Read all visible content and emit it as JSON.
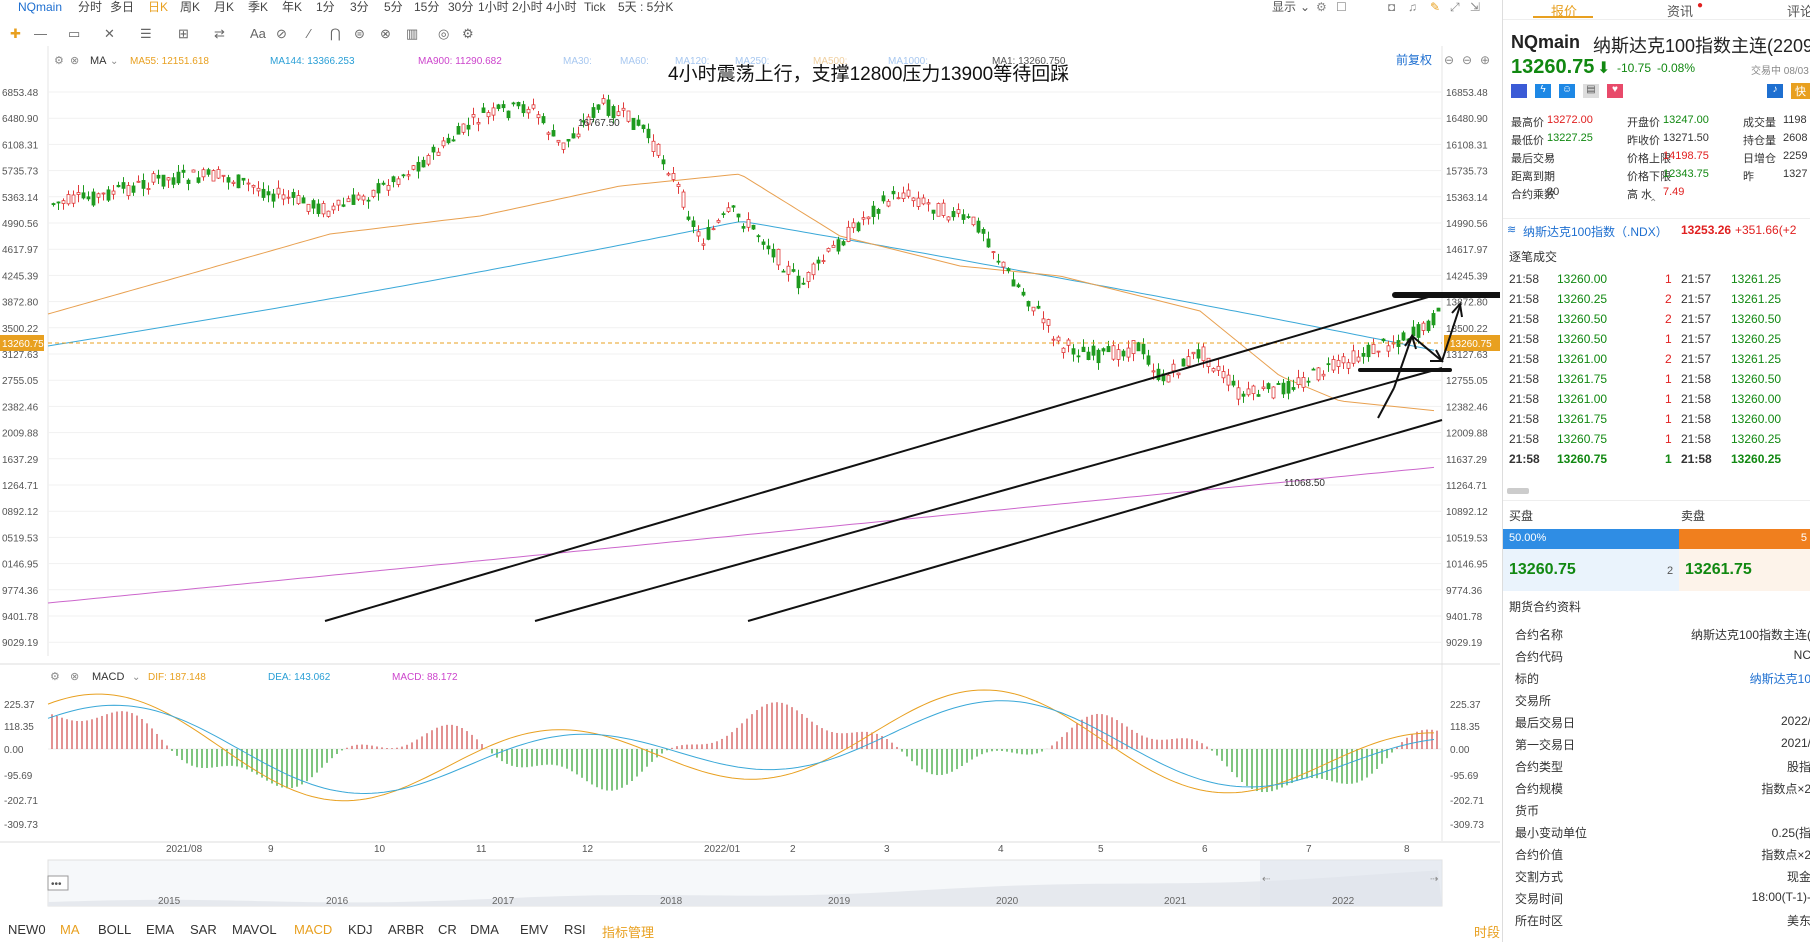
{
  "topbar": {
    "symbol": "NQmain",
    "periods": [
      "分时",
      "多日",
      "日K",
      "周K",
      "月K",
      "季K",
      "年K",
      "1分",
      "3分",
      "5分",
      "15分",
      "30分",
      "1小时",
      "2小时",
      "4小时",
      "Tick",
      "5天 : 5分K"
    ],
    "active_period": "日K",
    "display": "显示"
  },
  "toolbar": {
    "aa": "Aa"
  },
  "indicator_bar": {
    "name": "MA",
    "items": [
      {
        "label": "MA55: 12151.618",
        "color": "#e8a020"
      },
      {
        "label": "MA144: 13366.253",
        "color": "#2a9fd6"
      },
      {
        "label": "MA900: 11290.682",
        "color": "#cc44cc"
      },
      {
        "label": "MA30:",
        "color": "#a8c8f0"
      },
      {
        "label": "MA60:",
        "color": "#a8c8f0"
      },
      {
        "label": "MA120:",
        "color": "#a8c8f0"
      },
      {
        "label": "MA250:",
        "color": "#a8c8f0"
      },
      {
        "label": "MA500:",
        "color": "#f0d0a0"
      },
      {
        "label": "MA1000:",
        "color": "#a8c8f0"
      },
      {
        "label": "MA1: 13260.750",
        "color": "#555555"
      }
    ],
    "restore": "前复权"
  },
  "annotation": "4小时震荡上行，支撑12800压力13900等待回踩",
  "price_axis": [
    "16853.48",
    "16480.90",
    "16108.31",
    "15735.73",
    "15363.14",
    "14990.56",
    "14617.97",
    "14245.39",
    "13872.80",
    "13500.22",
    "13127.63",
    "12755.05",
    "12382.46",
    "12009.88",
    "11637.29",
    "11264.71",
    "10892.12",
    "10519.53",
    "10146.95",
    "9774.36",
    "9401.78",
    "9029.19"
  ],
  "price_axis_left": [
    "6853.48",
    "6480.90",
    "6108.31",
    "5735.73",
    "5363.14",
    "4990.56",
    "4617.97",
    "4245.39",
    "3872.80",
    "3500.22",
    "3127.63",
    "2755.05",
    "2382.46",
    "2009.88",
    "1637.29",
    "1264.71",
    "0892.12",
    "0519.53",
    "0146.95",
    "9774.36",
    "9401.78",
    "9029.19"
  ],
  "current_price_tag": "13260.75",
  "high_label": "16767.50",
  "low_label": "11068.50",
  "macd_bar": {
    "name": "MACD",
    "items": [
      {
        "label": "DIF: 187.148",
        "color": "#e8a020"
      },
      {
        "label": "DEA: 143.062",
        "color": "#2a9fd6"
      },
      {
        "label": "MACD: 88.172",
        "color": "#cc44cc"
      }
    ]
  },
  "macd_axis": [
    "225.37",
    "118.35",
    "0.00",
    "-95.69",
    "-202.71",
    "-309.73"
  ],
  "time_axis": [
    "2021/08",
    "9",
    "10",
    "11",
    "12",
    "2022/01",
    "2",
    "3",
    "4",
    "5",
    "6",
    "7",
    "8"
  ],
  "overview_years": [
    "2015",
    "2016",
    "2017",
    "2018",
    "2019",
    "2020",
    "2021",
    "2022"
  ],
  "bottom_tabs": [
    "NEW0",
    "MA",
    "BOLL",
    "EMA",
    "SAR",
    "MAVOL",
    "MACD",
    "KDJ",
    "ARBR",
    "CR",
    "DMA",
    "EMV",
    "RSI",
    "指标管理"
  ],
  "bottom_right": "时段",
  "panel": {
    "tabs": [
      "报价",
      "资讯",
      "评论"
    ],
    "symbol": "NQmain",
    "name": "纳斯达克100指数主连(2209)",
    "price": "13260.75",
    "arrow": "⬇",
    "change": "-10.75",
    "change_pct": "-0.08%",
    "trading_status": "交易中 08/03 21:5",
    "quick": "快",
    "stats": [
      {
        "label": "最高价",
        "value": "13272.00",
        "color": "#e02020"
      },
      {
        "label": "开盘价",
        "value": "13247.00",
        "color": "#118811"
      },
      {
        "label": "成交量",
        "value": "1198",
        "color": "#333333"
      },
      {
        "label": "最低价",
        "value": "13227.25",
        "color": "#118811"
      },
      {
        "label": "昨收价",
        "value": "13271.50",
        "color": "#333333"
      },
      {
        "label": "持仓量",
        "value": "2608",
        "color": "#333333"
      },
      {
        "label": "最后交易",
        "value": "--",
        "color": "#333333"
      },
      {
        "label": "价格上限",
        "value": "14198.75",
        "color": "#e02020"
      },
      {
        "label": "日增仓",
        "value": "2259",
        "color": "#333333"
      },
      {
        "label": "距离到期",
        "value": "--",
        "color": "#333333"
      },
      {
        "label": "价格下限",
        "value": "12343.75",
        "color": "#118811"
      },
      {
        "label": "昨",
        "value": "1327",
        "color": "#333333"
      },
      {
        "label": "合约乘数",
        "value": "20",
        "color": "#333333"
      },
      {
        "label": "高 水",
        "value": "7.49",
        "color": "#e02020"
      },
      {
        "label": "",
        "value": "",
        "color": "#333333"
      }
    ],
    "index_name": "纳斯达克100指数（.NDX）",
    "index_price": "13253.26",
    "index_change": "+351.66(+2",
    "trades_title": "逐笔成交",
    "trades": [
      [
        "21:58",
        "13260.00",
        "1",
        "21:57",
        "13261.25"
      ],
      [
        "21:58",
        "13260.25",
        "2",
        "21:57",
        "13261.25"
      ],
      [
        "21:58",
        "13260.50",
        "2",
        "21:57",
        "13260.50"
      ],
      [
        "21:58",
        "13260.50",
        "1",
        "21:57",
        "13260.25"
      ],
      [
        "21:58",
        "13261.00",
        "2",
        "21:57",
        "13261.25"
      ],
      [
        "21:58",
        "13261.75",
        "1",
        "21:58",
        "13260.50"
      ],
      [
        "21:58",
        "13261.00",
        "1",
        "21:58",
        "13260.00"
      ],
      [
        "21:58",
        "13261.75",
        "1",
        "21:58",
        "13260.00"
      ],
      [
        "21:58",
        "13260.75",
        "1",
        "21:58",
        "13260.25"
      ],
      [
        "21:58",
        "13260.75",
        "1",
        "21:58",
        "13260.25"
      ]
    ],
    "buy_label": "买盘",
    "sell_label": "卖盘",
    "buy_pct": "50.00%",
    "sell_pct": "5",
    "bid_price": "13260.75",
    "bid_size": "2",
    "ask_price": "13261.75",
    "contract_title": "期货合约资料",
    "contract": [
      [
        "合约名称",
        "纳斯达克100指数主连("
      ],
      [
        "合约代码",
        "NC"
      ],
      [
        "标的",
        "纳斯达克10"
      ],
      [
        "交易所",
        ""
      ],
      [
        "最后交易日",
        "2022/"
      ],
      [
        "第一交易日",
        "2021/"
      ],
      [
        "合约类型",
        "股指"
      ],
      [
        "合约规模",
        "指数点×2"
      ],
      [
        "货币",
        ""
      ],
      [
        "最小变动单位",
        "0.25(指"
      ],
      [
        "合约价值",
        "指数点×2"
      ],
      [
        "交割方式",
        "现金"
      ],
      [
        "交易时间",
        "18:00(T-1)-"
      ],
      [
        "所在时区",
        "美东"
      ]
    ]
  }
}
